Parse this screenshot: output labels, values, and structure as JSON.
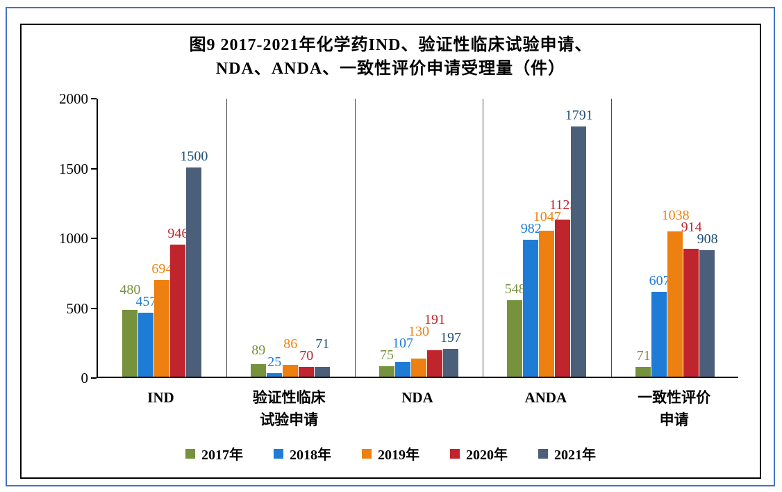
{
  "page": {
    "border_color": "#4472C4",
    "background": "#FFFFFF"
  },
  "chart_data": {
    "type": "bar",
    "title_line1": "图9  2017-2021年化学药IND、验证性临床试验申请、",
    "title_line2": "NDA、ANDA、一致性评价申请受理量（件）",
    "categories": [
      "IND",
      "验证性临床\n试验申请",
      "NDA",
      "ANDA",
      "一致性评价\n申请"
    ],
    "series": [
      {
        "name": "2017年",
        "color": "#76923C",
        "label_color": "#76923C",
        "values": [
          480,
          89,
          75,
          548,
          71
        ]
      },
      {
        "name": "2018年",
        "color": "#1E7CD6",
        "label_color": "#1E7CD6",
        "values": [
          457,
          25,
          107,
          982,
          607
        ]
      },
      {
        "name": "2019年",
        "color": "#ED8010",
        "label_color": "#ED8010",
        "values": [
          694,
          86,
          130,
          1047,
          1038
        ]
      },
      {
        "name": "2020年",
        "color": "#C0242C",
        "label_color": "#C0242C",
        "values": [
          946,
          70,
          191,
          1125,
          914
        ]
      },
      {
        "name": "2021年",
        "color": "#4C5F7A",
        "label_color": "#1F4E79",
        "values": [
          1500,
          71,
          197,
          1791,
          908
        ]
      }
    ],
    "y_axis": {
      "min": 0,
      "max": 2000,
      "tick_interval": 500,
      "ticks": [
        0,
        500,
        1000,
        1500,
        2000
      ]
    },
    "legend_position": "bottom",
    "grid": "vertical category separators"
  }
}
